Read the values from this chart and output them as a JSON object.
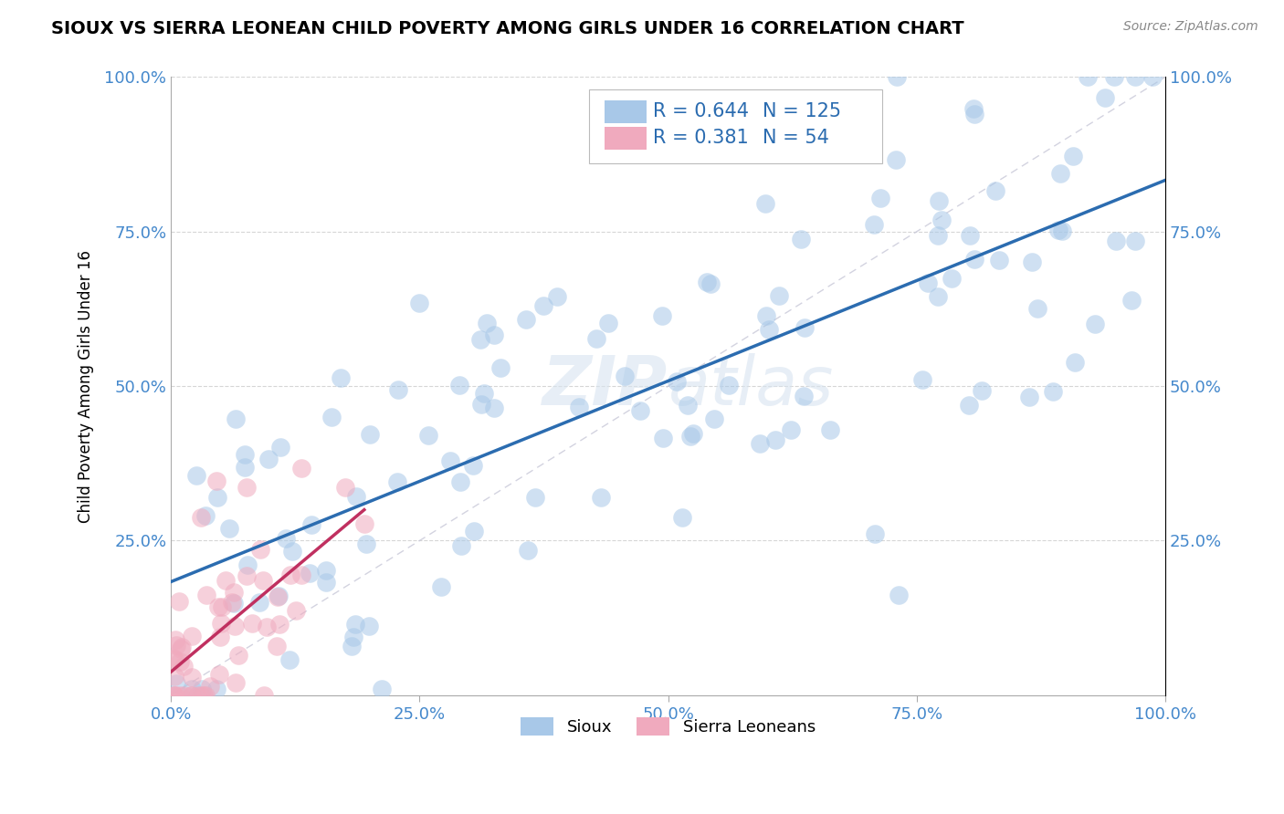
{
  "title": "SIOUX VS SIERRA LEONEAN CHILD POVERTY AMONG GIRLS UNDER 16 CORRELATION CHART",
  "source": "Source: ZipAtlas.com",
  "ylabel": "Child Poverty Among Girls Under 16",
  "xlim": [
    0.0,
    1.0
  ],
  "ylim": [
    0.0,
    1.0
  ],
  "xtick_labels": [
    "0.0%",
    "25.0%",
    "50.0%",
    "75.0%",
    "100.0%"
  ],
  "xtick_vals": [
    0.0,
    0.25,
    0.5,
    0.75,
    1.0
  ],
  "ytick_labels": [
    "25.0%",
    "50.0%",
    "75.0%",
    "100.0%"
  ],
  "ytick_vals": [
    0.25,
    0.5,
    0.75,
    1.0
  ],
  "sioux_color": "#A8C8E8",
  "sierra_color": "#F0AABE",
  "sioux_line_color": "#2B6CB0",
  "sierra_line_color": "#C03060",
  "diagonal_color": "#C8C8D8",
  "background_color": "#FFFFFF",
  "grid_color": "#CCCCCC",
  "tick_color": "#4488CC",
  "sioux_R": 0.644,
  "sioux_N": 125,
  "sierra_R": 0.381,
  "sierra_N": 54,
  "legend_label_sioux": "Sioux",
  "legend_label_sierra": "Sierra Leoneans",
  "watermark": "ZIPAtlas"
}
